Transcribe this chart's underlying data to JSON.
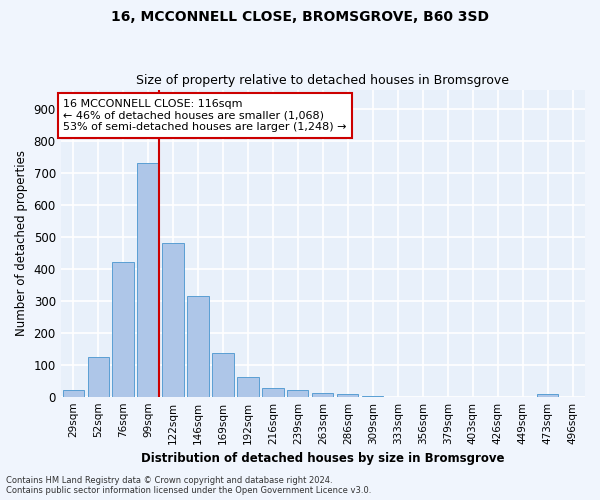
{
  "title1": "16, MCCONNELL CLOSE, BROMSGROVE, B60 3SD",
  "title2": "Size of property relative to detached houses in Bromsgrove",
  "xlabel": "Distribution of detached houses by size in Bromsgrove",
  "ylabel": "Number of detached properties",
  "bar_categories": [
    "29sqm",
    "52sqm",
    "76sqm",
    "99sqm",
    "122sqm",
    "146sqm",
    "169sqm",
    "192sqm",
    "216sqm",
    "239sqm",
    "263sqm",
    "286sqm",
    "309sqm",
    "333sqm",
    "356sqm",
    "379sqm",
    "403sqm",
    "426sqm",
    "449sqm",
    "473sqm",
    "496sqm"
  ],
  "bar_values": [
    20,
    125,
    420,
    730,
    480,
    315,
    135,
    63,
    28,
    22,
    10,
    8,
    3,
    0,
    0,
    0,
    0,
    0,
    0,
    8,
    0
  ],
  "bar_color": "#aec6e8",
  "bar_edgecolor": "#5a9fd4",
  "subject_line_color": "#cc0000",
  "annotation_line1": "16 MCCONNELL CLOSE: 116sqm",
  "annotation_line2": "← 46% of detached houses are smaller (1,068)",
  "annotation_line3": "53% of semi-detached houses are larger (1,248) →",
  "annotation_box_color": "#ffffff",
  "annotation_box_edgecolor": "#cc0000",
  "ylim": [
    0,
    960
  ],
  "yticks": [
    0,
    100,
    200,
    300,
    400,
    500,
    600,
    700,
    800,
    900
  ],
  "bg_color": "#e8f0fa",
  "grid_color": "#ffffff",
  "fig_bg_color": "#f0f5fd",
  "footer1": "Contains HM Land Registry data © Crown copyright and database right 2024.",
  "footer2": "Contains public sector information licensed under the Open Government Licence v3.0."
}
